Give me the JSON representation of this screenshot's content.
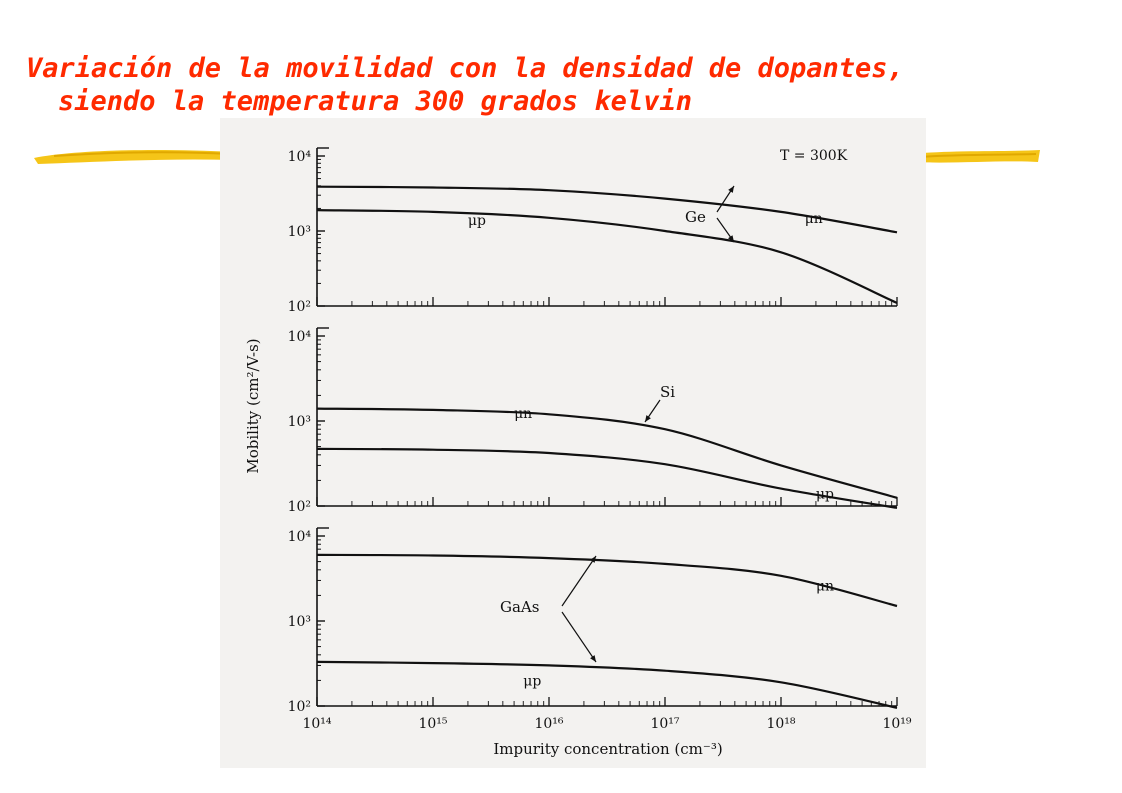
{
  "slide": {
    "title_line1": "Variación de la movilidad con la densidad de dopantes,",
    "title_line2": "siendo la temperatura 300 grados kelvin",
    "title_color": "#ff2a00",
    "accent_color": "#f5c518"
  },
  "chart_data": {
    "type": "line",
    "title": "",
    "annotation": "T = 300K",
    "xlabel": "Impurity concentration (cm⁻³)",
    "ylabel": "Mobility (cm²/V-s)",
    "xscale": "log",
    "yscale": "log",
    "xlim": [
      100000000000000.0,
      1e+19
    ],
    "x_tick_labels": [
      "10¹⁴",
      "10¹⁵",
      "10¹⁶",
      "10¹⁷",
      "10¹⁸",
      "10¹⁹"
    ],
    "panels": [
      {
        "material": "Ge",
        "ylim": [
          100,
          10000
        ],
        "y_tick_labels": [
          "10⁴",
          "10³",
          "10²"
        ],
        "x": [
          100000000000000.0,
          1000000000000000.0,
          1e+16,
          1e+17,
          1e+18,
          1e+19
        ],
        "series": [
          {
            "name": "μn",
            "values": [
              3900,
              3800,
              3500,
              2700,
              1800,
              960
            ]
          },
          {
            "name": "μp",
            "values": [
              1900,
              1800,
              1500,
              1000,
              520,
              110
            ]
          }
        ]
      },
      {
        "material": "Si",
        "ylim": [
          100,
          10000
        ],
        "y_tick_labels": [
          "10⁴",
          "10³",
          "10²"
        ],
        "x": [
          100000000000000.0,
          1000000000000000.0,
          1e+16,
          1e+17,
          1e+18,
          1e+19
        ],
        "series": [
          {
            "name": "μn",
            "values": [
              1400,
              1350,
              1200,
              800,
              300,
              125
            ]
          },
          {
            "name": "μp",
            "values": [
              470,
              460,
              420,
              310,
              160,
              95
            ]
          }
        ]
      },
      {
        "material": "GaAs",
        "ylim": [
          100,
          10000
        ],
        "y_tick_labels": [
          "10⁴",
          "10³",
          "10²"
        ],
        "x": [
          100000000000000.0,
          1000000000000000.0,
          1e+16,
          1e+17,
          1e+18,
          1e+19
        ],
        "series": [
          {
            "name": "μn",
            "values": [
              6000,
              5900,
              5500,
              4700,
              3400,
              1500
            ]
          },
          {
            "name": "μp",
            "values": [
              330,
              320,
              300,
              260,
              190,
              95
            ]
          }
        ]
      }
    ]
  }
}
